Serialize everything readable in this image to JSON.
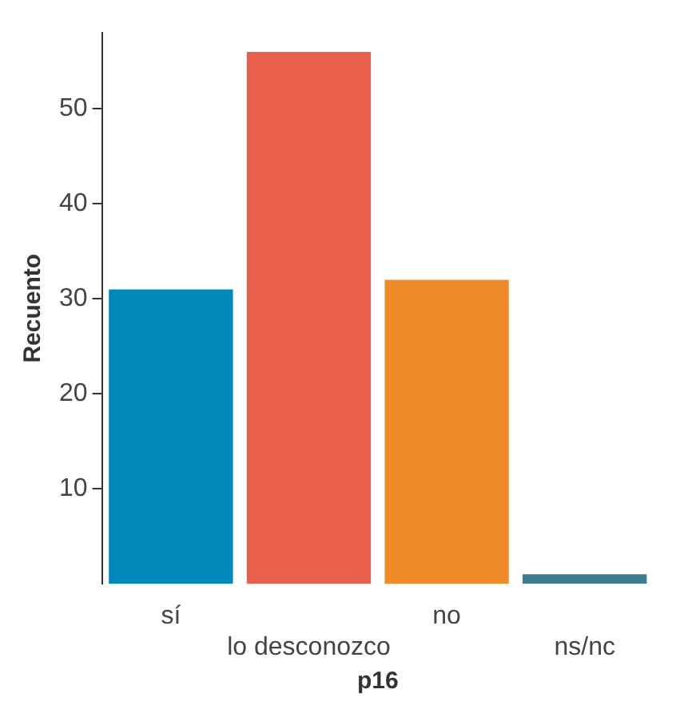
{
  "chart_data": {
    "type": "bar",
    "xlabel": "p16",
    "ylabel": "Recuento",
    "categories": [
      "sí",
      "lo desconozco",
      "no",
      "ns/nc"
    ],
    "values": [
      31,
      56,
      32,
      1
    ],
    "colors": [
      "#0088bb",
      "#e8604c",
      "#ee8a28",
      "#3f7a8f"
    ],
    "ylim": [
      0,
      58
    ],
    "yticks": [
      10,
      20,
      30,
      40,
      50
    ],
    "grid": false,
    "legend": false
  }
}
